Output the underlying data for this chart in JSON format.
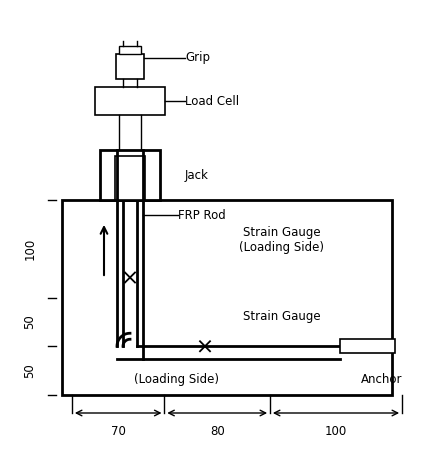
{
  "bg_color": "#ffffff",
  "line_color": "#000000",
  "labels": {
    "grip": "Grip",
    "load_cell": "Load Cell",
    "jack": "Jack",
    "frp_rod": "FRP Rod",
    "strain_gauge_top": "Strain Gauge\n(Loading Side)",
    "strain_gauge_bot": "Strain Gauge",
    "loading_side_bot": "(Loading Side)",
    "anchor": "Anchor"
  },
  "dim_labels": {
    "left_100": "100",
    "left_50_mid": "50",
    "left_50_bot": "50",
    "bot_70": "70",
    "bot_80": "80",
    "bot_100": "100"
  }
}
